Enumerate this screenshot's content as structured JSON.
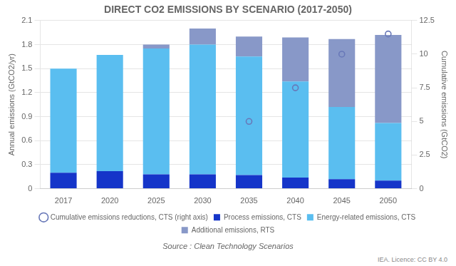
{
  "chart_data": {
    "type": "bar",
    "title": "DIRECT CO2 EMISSIONS BY SCENARIO (2017-2050)",
    "subtitle": "Source : Clean Technology Scenarios",
    "annotations": [
      "IEA. Licence: CC BY 4.0"
    ],
    "ylabel": "Annual emissions (GtCO2/yr)",
    "y2label": "Cumulative emissions (GtCO2)",
    "categories": [
      "2017",
      "2020",
      "2025",
      "2030",
      "2035",
      "2040",
      "2045",
      "2050"
    ],
    "series": [
      {
        "name": "Process emissions, CTS",
        "type": "bar",
        "color": "#1535c9",
        "values": [
          0.2,
          0.22,
          0.18,
          0.18,
          0.17,
          0.14,
          0.12,
          0.1
        ]
      },
      {
        "name": "Energy-related emissions, CTS",
        "type": "bar",
        "color": "#5abef0",
        "values": [
          1.3,
          1.45,
          1.57,
          1.62,
          1.48,
          1.2,
          0.9,
          0.72
        ]
      },
      {
        "name": "Additional emissions, RTS",
        "type": "bar",
        "color": "#8898c8",
        "values": [
          0.0,
          0.0,
          0.05,
          0.2,
          0.25,
          0.55,
          0.85,
          1.1
        ]
      },
      {
        "name": "Cumulative emissions reductions, CTS (right axis)",
        "type": "scatter",
        "axis": "y2",
        "marker": "circle",
        "color": "#6878b8",
        "values": [
          null,
          null,
          null,
          null,
          5.0,
          7.5,
          10.0,
          11.5
        ]
      }
    ],
    "stacked": true,
    "ylim": [
      0,
      2.1
    ],
    "yticks": [
      0,
      0.3,
      0.6,
      0.9,
      1.2,
      1.5,
      1.8,
      2.1
    ],
    "y2lim": [
      0,
      12.5
    ],
    "y2ticks": [
      0,
      2.5,
      5,
      7.5,
      10,
      12.5
    ],
    "grid": true,
    "legend": "bottom"
  }
}
